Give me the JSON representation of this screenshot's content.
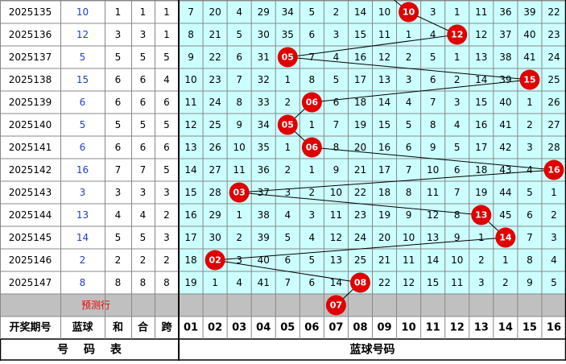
{
  "header": {
    "period": "开奖期号",
    "blue": "蓝球",
    "sum": "和",
    "he": "合",
    "span": "跨",
    "numbers": [
      "01",
      "02",
      "03",
      "04",
      "05",
      "06",
      "07",
      "08",
      "09",
      "10",
      "11",
      "12",
      "13",
      "14",
      "15",
      "16"
    ]
  },
  "rows": [
    {
      "period": "2025135",
      "blue": "10",
      "sum": "1",
      "he": "1",
      "span": "1",
      "cells": [
        "7",
        "20",
        "4",
        "29",
        "34",
        "5",
        "2",
        "14",
        "10",
        {
          "ball": "10"
        },
        "3",
        "1",
        "11",
        "36",
        "39",
        "22"
      ]
    },
    {
      "period": "2025136",
      "blue": "12",
      "sum": "3",
      "he": "3",
      "span": "1",
      "cells": [
        "8",
        "21",
        "5",
        "30",
        "35",
        "6",
        "3",
        "15",
        "11",
        "1",
        "4",
        {
          "ball": "12"
        },
        "12",
        "37",
        "40",
        "23"
      ]
    },
    {
      "period": "2025137",
      "blue": "5",
      "sum": "5",
      "he": "5",
      "span": "5",
      "cells": [
        "9",
        "22",
        "6",
        "31",
        {
          "ball": "05"
        },
        "7",
        "4",
        "16",
        "12",
        "2",
        "5",
        "1",
        "13",
        "38",
        "41",
        "24"
      ]
    },
    {
      "period": "2025138",
      "blue": "15",
      "sum": "6",
      "he": "6",
      "span": "4",
      "cells": [
        "10",
        "23",
        "7",
        "32",
        "1",
        "8",
        "5",
        "17",
        "13",
        "3",
        "6",
        "2",
        "14",
        "39",
        {
          "ball": "15"
        },
        "25"
      ]
    },
    {
      "period": "2025139",
      "blue": "6",
      "sum": "6",
      "he": "6",
      "span": "6",
      "cells": [
        "11",
        "24",
        "8",
        "33",
        "2",
        {
          "ball": "06"
        },
        "6",
        "18",
        "14",
        "4",
        "7",
        "3",
        "15",
        "40",
        "1",
        "26"
      ]
    },
    {
      "period": "2025140",
      "blue": "5",
      "sum": "5",
      "he": "5",
      "span": "5",
      "cells": [
        "12",
        "25",
        "9",
        "34",
        {
          "ball": "05"
        },
        "1",
        "7",
        "19",
        "15",
        "5",
        "8",
        "4",
        "16",
        "41",
        "2",
        "27"
      ]
    },
    {
      "period": "2025141",
      "blue": "6",
      "sum": "6",
      "he": "6",
      "span": "6",
      "cells": [
        "13",
        "26",
        "10",
        "35",
        "1",
        {
          "ball": "06"
        },
        "8",
        "20",
        "16",
        "6",
        "9",
        "5",
        "17",
        "42",
        "3",
        "28"
      ]
    },
    {
      "period": "2025142",
      "blue": "16",
      "sum": "7",
      "he": "7",
      "span": "5",
      "cells": [
        "14",
        "27",
        "11",
        "36",
        "2",
        "1",
        "9",
        "21",
        "17",
        "7",
        "10",
        "6",
        "18",
        "43",
        "4",
        {
          "ball": "16"
        }
      ]
    },
    {
      "period": "2025143",
      "blue": "3",
      "sum": "3",
      "he": "3",
      "span": "3",
      "cells": [
        "15",
        "28",
        {
          "ball": "03"
        },
        "37",
        "3",
        "2",
        "10",
        "22",
        "18",
        "8",
        "11",
        "7",
        "19",
        "44",
        "5",
        "1"
      ]
    },
    {
      "period": "2025144",
      "blue": "13",
      "sum": "4",
      "he": "4",
      "span": "2",
      "cells": [
        "16",
        "29",
        "1",
        "38",
        "4",
        "3",
        "11",
        "23",
        "19",
        "9",
        "12",
        "8",
        {
          "ball": "13"
        },
        "45",
        "6",
        "2"
      ]
    },
    {
      "period": "2025145",
      "blue": "14",
      "sum": "5",
      "he": "5",
      "span": "3",
      "cells": [
        "17",
        "30",
        "2",
        "39",
        "5",
        "4",
        "12",
        "24",
        "20",
        "10",
        "13",
        "9",
        "1",
        {
          "ball": "14"
        },
        "7",
        "3"
      ]
    },
    {
      "period": "2025146",
      "blue": "2",
      "sum": "2",
      "he": "2",
      "span": "2",
      "cells": [
        "18",
        {
          "ball": "02"
        },
        "3",
        "40",
        "6",
        "5",
        "13",
        "25",
        "21",
        "11",
        "14",
        "10",
        "2",
        "1",
        "8",
        "4"
      ]
    },
    {
      "period": "2025147",
      "blue": "8",
      "sum": "8",
      "he": "8",
      "span": "8",
      "cells": [
        "19",
        "1",
        "4",
        "41",
        "7",
        "6",
        "14",
        {
          "ball": "08"
        },
        "22",
        "12",
        "15",
        "11",
        "3",
        "2",
        "9",
        "5"
      ]
    }
  ],
  "prediction": {
    "label": "预测行",
    "cells": [
      "",
      "",
      "",
      "",
      "",
      "",
      {
        "ball": "07"
      },
      "",
      "",
      "",
      "",
      "",
      "",
      "",
      "",
      ""
    ]
  },
  "footer": {
    "left": "号 码 表",
    "right": "蓝球号码"
  }
}
